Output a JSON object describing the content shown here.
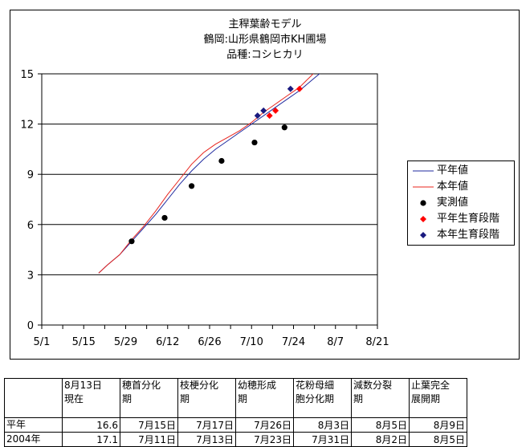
{
  "chart_data": {
    "type": "line",
    "title": [
      "主稈葉齢モデル",
      "鶴岡:山形県鶴岡市KH圃場",
      "品種:コシヒカリ"
    ],
    "xlabel": "",
    "ylabel": "",
    "x_ticks": [
      "5/1",
      "5/15",
      "5/29",
      "6/12",
      "6/26",
      "7/10",
      "7/24",
      "8/7",
      "8/21"
    ],
    "x_tick_days": [
      0,
      14,
      28,
      42,
      56,
      70,
      84,
      98,
      112
    ],
    "xlim": [
      0,
      112
    ],
    "ylim": [
      0,
      15
    ],
    "y_ticks": [
      0,
      3,
      6,
      9,
      12,
      15
    ],
    "grid": "horizontal",
    "legend_position": "right",
    "series": [
      {
        "name": "平年値",
        "kind": "line",
        "color": "#1f2a9f",
        "x": [
          19,
          22,
          26,
          30,
          34,
          38,
          42,
          46,
          50,
          54,
          58,
          62,
          66,
          70,
          74,
          78,
          82,
          86,
          90,
          94
        ],
        "y": [
          3.1,
          3.6,
          4.2,
          5.0,
          5.8,
          6.6,
          7.5,
          8.4,
          9.2,
          9.9,
          10.5,
          11.0,
          11.5,
          12.0,
          12.5,
          13.0,
          13.5,
          14.0,
          14.6,
          15.2
        ]
      },
      {
        "name": "本年値",
        "kind": "line",
        "color": "#e8251e",
        "x": [
          19,
          22,
          26,
          30,
          34,
          38,
          42,
          46,
          50,
          54,
          58,
          62,
          66,
          70,
          74,
          78,
          82,
          86,
          90,
          92
        ],
        "y": [
          3.1,
          3.6,
          4.2,
          5.1,
          5.9,
          6.8,
          7.8,
          8.7,
          9.6,
          10.3,
          10.8,
          11.2,
          11.6,
          12.1,
          12.7,
          13.2,
          13.7,
          14.2,
          14.9,
          15.3
        ]
      },
      {
        "name": "実測値",
        "kind": "marker",
        "marker": "circle",
        "color": "#000000",
        "x": [
          30,
          41,
          50,
          60,
          71,
          81
        ],
        "y": [
          5.0,
          6.4,
          8.3,
          9.8,
          10.9,
          11.8
        ]
      },
      {
        "name": "平年生育段階",
        "kind": "marker",
        "marker": "diamond",
        "color": "#ff0000",
        "x": [
          76,
          78,
          86
        ],
        "y": [
          12.5,
          12.8,
          14.1
        ]
      },
      {
        "name": "本年生育段階",
        "kind": "marker",
        "marker": "diamond",
        "color": "#1a1a7f",
        "x": [
          72,
          74,
          83
        ],
        "y": [
          12.5,
          12.8,
          14.1
        ]
      }
    ]
  },
  "table": {
    "header": [
      "",
      "8月13日\n現在",
      "穂首分化\n期",
      "枝梗分化\n期",
      "幼穂形成\n期",
      "花粉母細\n胞分化期",
      "減数分裂\n期",
      "止葉完全\n展開期"
    ],
    "rows": [
      [
        "平年",
        "16.6",
        "7月15日",
        "7月17日",
        "7月26日",
        "8月3日",
        "8月5日",
        "8月9日"
      ],
      [
        "2004年",
        "17.1",
        "7月11日",
        "7月13日",
        "7月23日",
        "7月31日",
        "8月2日",
        "8月5日"
      ]
    ]
  }
}
